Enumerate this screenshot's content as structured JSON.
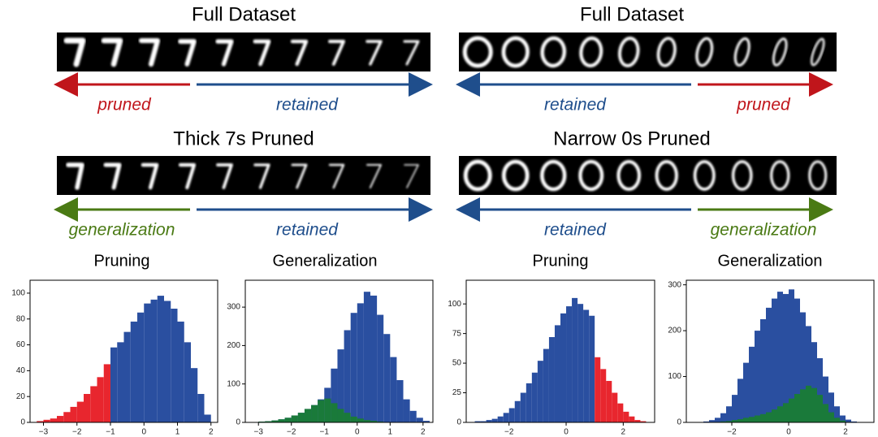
{
  "figure": {
    "left": {
      "top_title": "Full Dataset",
      "top_labels": [
        "pruned",
        "retained"
      ],
      "bottom_title": "Thick 7s Pruned",
      "bottom_labels": [
        "generalization",
        "retained"
      ],
      "hist_titles": [
        "Pruning",
        "Generalization"
      ]
    },
    "right": {
      "top_title": "Full Dataset",
      "top_labels": [
        "retained",
        "pruned"
      ],
      "bottom_title": "Narrow 0s Pruned",
      "bottom_labels": [
        "retained",
        "generalization"
      ],
      "hist_titles": [
        "Pruning",
        "Generalization"
      ]
    }
  },
  "chart_data": [
    {
      "type": "histogram",
      "xlim": [
        -3.4,
        2.2
      ],
      "ylim": [
        0,
        110
      ],
      "xticks": [
        {
          "value": -3,
          "label": "−3"
        },
        {
          "value": -2,
          "label": "−2"
        },
        {
          "value": -1,
          "label": "−1"
        },
        0,
        1,
        2
      ],
      "yticks": [
        0,
        20,
        40,
        60,
        80,
        100
      ],
      "series": [
        {
          "color": "#e8262e",
          "bins": [
            -3.2,
            -3.0,
            -2.8,
            -2.6,
            -2.4,
            -2.2,
            -2.0,
            -1.8,
            -1.6,
            -1.4,
            -1.2,
            -1.0
          ],
          "values": [
            1,
            2,
            3,
            5,
            8,
            12,
            16,
            22,
            28,
            35,
            45
          ]
        },
        {
          "color": "#2a4fa0",
          "bins": [
            -1.0,
            -0.8,
            -0.6,
            -0.4,
            -0.2,
            0,
            0.2,
            0.4,
            0.6,
            0.8,
            1.0,
            1.2,
            1.4,
            1.6,
            1.8,
            2.0
          ],
          "values": [
            58,
            62,
            70,
            78,
            85,
            92,
            95,
            98,
            94,
            88,
            78,
            62,
            42,
            22,
            6
          ]
        }
      ]
    },
    {
      "type": "histogram",
      "xlim": [
        -3.4,
        2.3
      ],
      "ylim": [
        0,
        370
      ],
      "xticks": [
        {
          "value": -3,
          "label": "−3"
        },
        {
          "value": -2,
          "label": "−2"
        },
        {
          "value": -1,
          "label": "−1"
        },
        0,
        1,
        2
      ],
      "yticks": [
        0,
        100,
        200,
        300
      ],
      "series": [
        {
          "color": "#2a4fa0",
          "bins": [
            -3.0,
            -2.8,
            -2.6,
            -2.4,
            -2.2,
            -2.0,
            -1.8,
            -1.6,
            -1.4,
            -1.2,
            -1.0,
            -0.8,
            -0.6,
            -0.4,
            -0.2,
            0,
            0.2,
            0.4,
            0.6,
            0.8,
            1.0,
            1.2,
            1.4,
            1.6,
            1.8,
            2.0,
            2.2
          ],
          "values": [
            2,
            3,
            5,
            8,
            12,
            18,
            25,
            35,
            45,
            60,
            90,
            140,
            190,
            240,
            285,
            310,
            340,
            330,
            280,
            230,
            170,
            110,
            60,
            30,
            12,
            4
          ]
        },
        {
          "color": "#1a7a3a",
          "bins": [
            -3.0,
            -2.8,
            -2.6,
            -2.4,
            -2.2,
            -2.0,
            -1.8,
            -1.6,
            -1.4,
            -1.2,
            -1.0,
            -0.8,
            -0.6,
            -0.4,
            -0.2,
            0,
            0.2,
            0.4,
            0.6,
            0.8,
            1.0
          ],
          "values": [
            2,
            3,
            5,
            8,
            12,
            18,
            25,
            35,
            45,
            58,
            62,
            50,
            35,
            25,
            15,
            10,
            6,
            4,
            2,
            1
          ]
        }
      ]
    },
    {
      "type": "histogram",
      "xlim": [
        -3.5,
        3.1
      ],
      "ylim": [
        0,
        120
      ],
      "xticks": [
        {
          "value": -2,
          "label": "−2"
        },
        0,
        2
      ],
      "yticks": [
        0,
        25,
        50,
        75,
        100
      ],
      "series": [
        {
          "color": "#2a4fa0",
          "bins": [
            -3.2,
            -3.0,
            -2.8,
            -2.6,
            -2.4,
            -2.2,
            -2.0,
            -1.8,
            -1.6,
            -1.4,
            -1.2,
            -1.0,
            -0.8,
            -0.6,
            -0.4,
            -0.2,
            0,
            0.2,
            0.4,
            0.6,
            0.8,
            1.0
          ],
          "values": [
            1,
            1,
            2,
            3,
            5,
            8,
            12,
            18,
            25,
            33,
            42,
            52,
            62,
            72,
            82,
            92,
            98,
            105,
            100,
            95,
            90
          ]
        },
        {
          "color": "#e8262e",
          "bins": [
            1.0,
            1.2,
            1.4,
            1.6,
            1.8,
            2.0,
            2.2,
            2.4,
            2.6,
            2.8
          ],
          "values": [
            55,
            45,
            35,
            25,
            16,
            9,
            5,
            2,
            1
          ]
        }
      ]
    },
    {
      "type": "histogram",
      "xlim": [
        -3.6,
        3.0
      ],
      "ylim": [
        0,
        310
      ],
      "xticks": [
        {
          "value": -2,
          "label": "−2"
        },
        0,
        2
      ],
      "yticks": [
        0,
        100,
        200,
        300
      ],
      "series": [
        {
          "color": "#2a4fa0",
          "bins": [
            -3.0,
            -2.8,
            -2.6,
            -2.4,
            -2.2,
            -2.0,
            -1.8,
            -1.6,
            -1.4,
            -1.2,
            -1.0,
            -0.8,
            -0.6,
            -0.4,
            -0.2,
            0,
            0.2,
            0.4,
            0.6,
            0.8,
            1.0,
            1.2,
            1.4,
            1.6,
            1.8,
            2.0,
            2.2,
            2.4
          ],
          "values": [
            2,
            5,
            10,
            20,
            35,
            60,
            95,
            130,
            165,
            200,
            225,
            250,
            270,
            285,
            280,
            290,
            270,
            240,
            210,
            175,
            140,
            100,
            65,
            35,
            15,
            6,
            2
          ]
        },
        {
          "color": "#1a7a3a",
          "bins": [
            -3.0,
            -2.8,
            -2.6,
            -2.4,
            -2.2,
            -2.0,
            -1.8,
            -1.6,
            -1.4,
            -1.2,
            -1.0,
            -0.8,
            -0.6,
            -0.4,
            -0.2,
            0,
            0.2,
            0.4,
            0.6,
            0.8,
            1.0,
            1.2,
            1.4,
            1.6,
            1.8,
            2.0,
            2.2,
            2.4
          ],
          "values": [
            0,
            0,
            1,
            2,
            3,
            5,
            7,
            10,
            12,
            15,
            18,
            22,
            28,
            35,
            42,
            52,
            62,
            72,
            80,
            75,
            60,
            40,
            22,
            10,
            4,
            1,
            0
          ]
        }
      ]
    }
  ]
}
